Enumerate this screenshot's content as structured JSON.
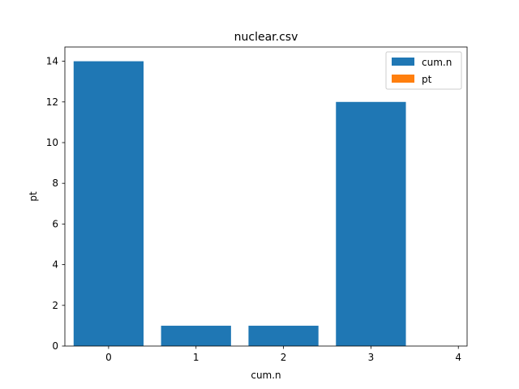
{
  "chart_data": {
    "type": "bar",
    "title": "nuclear.csv",
    "xlabel": "cum.n",
    "ylabel": "pt",
    "x_ticks": [
      0,
      1,
      2,
      3,
      4
    ],
    "y_ticks": [
      0,
      2,
      4,
      6,
      8,
      10,
      12,
      14
    ],
    "xlim": [
      -0.5,
      4.1
    ],
    "ylim": [
      0,
      14.7
    ],
    "grid": false,
    "legend_position": "top-right",
    "series": [
      {
        "name": "cum.n",
        "color": "#1f77b4",
        "x": [
          0,
          1,
          2,
          3
        ],
        "values": [
          14,
          1,
          1,
          12
        ]
      },
      {
        "name": "pt",
        "color": "#ff7f0e",
        "x": [],
        "values": []
      }
    ]
  }
}
